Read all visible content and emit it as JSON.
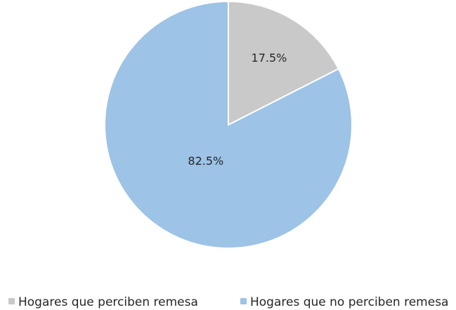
{
  "chart_data": {
    "type": "pie",
    "categories": [
      "Hogares que perciben remesa",
      "Hogares que no perciben remesa"
    ],
    "values": [
      17.5,
      82.5
    ],
    "value_labels": [
      "17.5%",
      "82.5%"
    ],
    "colors": [
      "#c9c9c9",
      "#9dc3e6"
    ],
    "legend": "bottom"
  }
}
